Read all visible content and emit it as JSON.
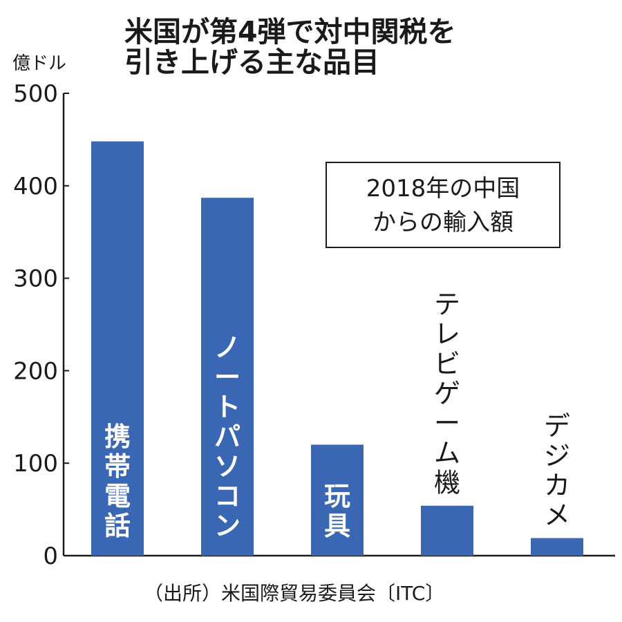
{
  "chart_data": {
    "type": "bar",
    "title": [
      "米国が第4弾で対中関税を",
      "引き上げる主な品目"
    ],
    "ylabel": "億ドル",
    "ylim": [
      0,
      500
    ],
    "yticks": [
      "500",
      "400",
      "300",
      "200",
      "100",
      "0"
    ],
    "categories": [
      "携帯電話",
      "ノートパソコン",
      "玩具",
      "テレビゲーム機",
      "デジカメ"
    ],
    "values": [
      448,
      387,
      120,
      54,
      19
    ],
    "label_inside_bar": [
      true,
      true,
      true,
      false,
      false
    ],
    "legend": [
      "2018年の中国",
      "からの輸入額"
    ],
    "legend_position": "upper-right",
    "bar_color": "#3a67b4",
    "source": "（出所）米国際貿易委員会〔ITC〕"
  }
}
